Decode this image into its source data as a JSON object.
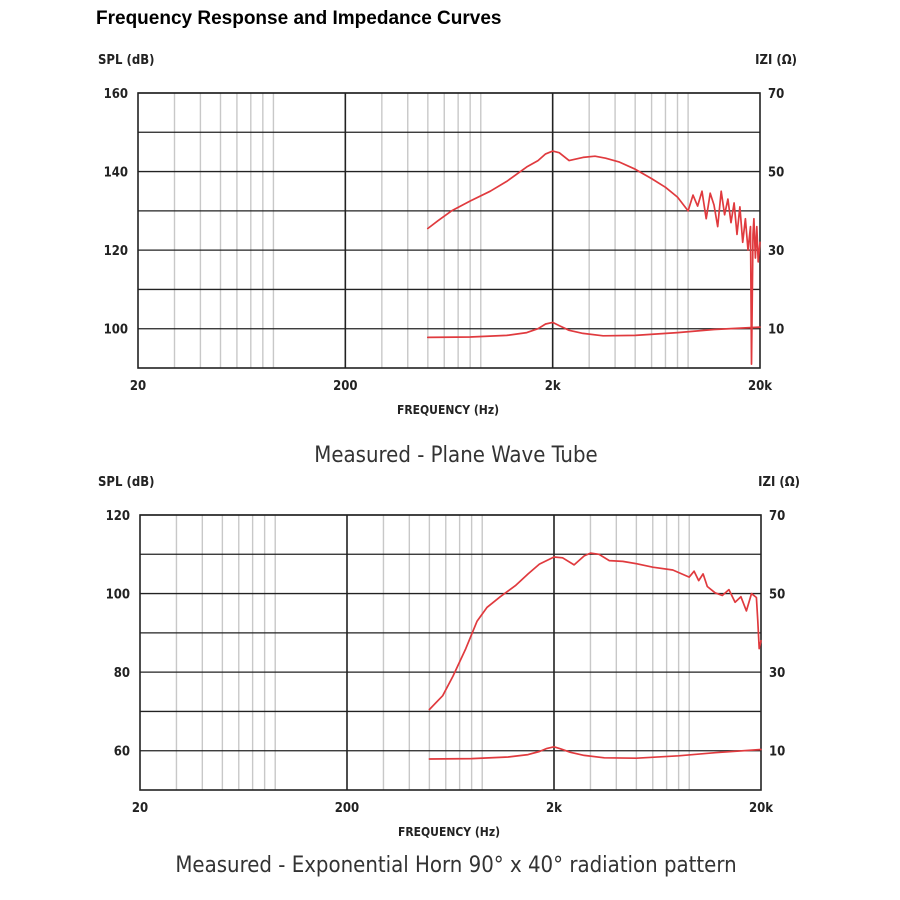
{
  "title": "Frequency Response and Impedance Curves",
  "colors": {
    "curve": "#e03a3e",
    "grid": "#222222",
    "minor_grid": "#c8c8c8"
  },
  "chart_data": [
    {
      "type": "line",
      "caption": "Measured - Plane Wave Tube",
      "xlabel": "FREQUENCY (Hz)",
      "ylabel_left": "SPL (dB)",
      "ylabel_right": "IZI (Ω)",
      "xscale": "log",
      "xlim": [
        20,
        20000
      ],
      "x_ticks": [
        {
          "value": 20,
          "label": "20"
        },
        {
          "value": 200,
          "label": "200"
        },
        {
          "value": 2000,
          "label": "2k"
        },
        {
          "value": 20000,
          "label": "20k"
        }
      ],
      "ylim_left": [
        90,
        160
      ],
      "ylim_right": [
        0,
        70
      ],
      "left_ticks": [
        {
          "value": 100,
          "label": "100"
        },
        {
          "value": 120,
          "label": "120"
        },
        {
          "value": 140,
          "label": "140"
        },
        {
          "value": 160,
          "label": "160"
        }
      ],
      "right_ticks": [
        {
          "value": 10,
          "label": "10"
        },
        {
          "value": 30,
          "label": "30"
        },
        {
          "value": 50,
          "label": "50"
        },
        {
          "value": 70,
          "label": "70"
        }
      ],
      "h_gridlines": [
        100,
        110,
        120,
        130,
        140,
        150,
        160
      ],
      "series": [
        {
          "name": "SPL",
          "axis": "left",
          "x": [
            500,
            560,
            650,
            800,
            1000,
            1200,
            1500,
            1700,
            1850,
            2000,
            2150,
            2400,
            2800,
            3200,
            3600,
            4200,
            5000,
            6000,
            7000,
            8000,
            9000,
            9500,
            10000,
            10500,
            11000,
            11500,
            12000,
            12500,
            13000,
            13500,
            14000,
            14500,
            15000,
            15500,
            16000,
            16500,
            17000,
            17500,
            18000,
            18200,
            18500,
            18700,
            19000,
            19300,
            19600,
            20000
          ],
          "y": [
            125.5,
            127.5,
            130,
            132.5,
            135,
            137.5,
            141.2,
            142.8,
            144.5,
            145.2,
            144.8,
            142.8,
            143.6,
            143.9,
            143.4,
            142.4,
            140.6,
            138.2,
            136,
            133.5,
            130,
            134,
            131.2,
            135,
            128,
            134.5,
            131.5,
            126,
            135,
            129,
            133,
            127,
            132,
            124,
            131,
            122,
            128,
            120,
            126,
            91,
            124,
            128,
            118,
            126,
            117,
            122
          ]
        },
        {
          "name": "Impedance",
          "axis": "right",
          "x": [
            500,
            800,
            1200,
            1500,
            1700,
            1850,
            2000,
            2150,
            2400,
            2800,
            3500,
            5000,
            8000,
            12000,
            20000
          ],
          "y": [
            7.8,
            7.9,
            8.3,
            9,
            10,
            11.2,
            11.6,
            10.8,
            9.6,
            8.8,
            8.2,
            8.3,
            9,
            9.8,
            10.4
          ]
        }
      ]
    },
    {
      "type": "line",
      "caption": "Measured - Exponential Horn 90° x 40° radiation pattern",
      "xlabel": "FREQUENCY (Hz)",
      "ylabel_left": "SPL (dB)",
      "ylabel_right": "IZI (Ω)",
      "xscale": "log",
      "xlim": [
        20,
        20000
      ],
      "x_ticks": [
        {
          "value": 20,
          "label": "20"
        },
        {
          "value": 200,
          "label": "200"
        },
        {
          "value": 2000,
          "label": "2k"
        },
        {
          "value": 20000,
          "label": "20k"
        }
      ],
      "ylim_left": [
        50,
        120
      ],
      "ylim_right": [
        0,
        70
      ],
      "left_ticks": [
        {
          "value": 60,
          "label": "60"
        },
        {
          "value": 80,
          "label": "80"
        },
        {
          "value": 100,
          "label": "100"
        },
        {
          "value": 120,
          "label": "120"
        }
      ],
      "right_ticks": [
        {
          "value": 10,
          "label": "10"
        },
        {
          "value": 30,
          "label": "30"
        },
        {
          "value": 50,
          "label": "50"
        },
        {
          "value": 70,
          "label": "70"
        }
      ],
      "h_gridlines": [
        60,
        70,
        80,
        90,
        100,
        110,
        120
      ],
      "series": [
        {
          "name": "SPL",
          "axis": "left",
          "x": [
            500,
            580,
            650,
            750,
            850,
            950,
            1100,
            1300,
            1500,
            1700,
            2000,
            2200,
            2500,
            2800,
            3000,
            3300,
            3700,
            4300,
            5000,
            6000,
            7500,
            9000,
            9500,
            10000,
            10500,
            11000,
            12000,
            13000,
            14000,
            15000,
            16000,
            17000,
            18000,
            19000,
            19300,
            19600,
            20000
          ],
          "y": [
            70.5,
            74,
            79,
            86,
            93,
            96.5,
            99.2,
            102,
            105,
            107.5,
            109.3,
            109.1,
            107.3,
            109.6,
            110.3,
            110,
            108.4,
            108.2,
            107.6,
            106.7,
            106,
            104.2,
            105.7,
            103.3,
            105,
            101.8,
            100.2,
            99.5,
            101,
            97.8,
            99.2,
            95.6,
            100,
            99,
            93,
            86,
            88
          ]
        },
        {
          "name": "Impedance",
          "axis": "right",
          "x": [
            500,
            800,
            1200,
            1500,
            1700,
            1850,
            2000,
            2150,
            2400,
            2800,
            3500,
            5000,
            8000,
            12000,
            20000
          ],
          "y": [
            7.9,
            8,
            8.4,
            9,
            9.8,
            10.6,
            11,
            10.5,
            9.6,
            8.8,
            8.2,
            8.1,
            8.7,
            9.5,
            10.3
          ]
        }
      ]
    }
  ]
}
